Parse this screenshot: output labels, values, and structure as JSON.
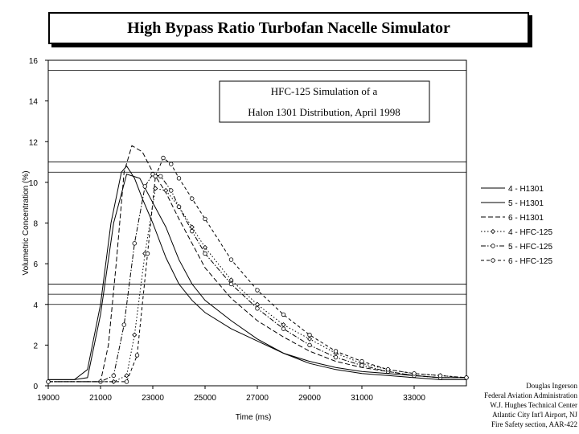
{
  "chart_data": {
    "type": "line",
    "title": "High Bypass Ratio Turbofan Nacelle Simulator",
    "xlabel": "Time (ms)",
    "ylabel": "Volumetric Concentration (%)",
    "xlim": [
      19000,
      35000
    ],
    "ylim": [
      0,
      16
    ],
    "xticks": [
      19000,
      21000,
      23000,
      25000,
      27000,
      29000,
      31000,
      33000
    ],
    "yticks": [
      0,
      2,
      4,
      6,
      8,
      10,
      12,
      14,
      16
    ],
    "grid": "horizontal reference lines",
    "hlines": [
      4.0,
      4.5,
      5.0,
      10.5,
      11.0,
      15.5
    ],
    "legend_position": "right",
    "annotation": [
      "HFC-125 Simulation of a",
      "Halon 1301 Distribution, April 1998"
    ],
    "series": [
      {
        "name": "4 - H1301",
        "style": "solid",
        "x": [
          19000,
          20000,
          20500,
          21000,
          21500,
          22000,
          22500,
          23000,
          23500,
          24000,
          24500,
          25000,
          26000,
          27000,
          28000,
          29000,
          30000,
          31000,
          32000,
          33000,
          34000,
          35000
        ],
        "y": [
          0.3,
          0.3,
          0.4,
          3.5,
          8.0,
          10.4,
          10.2,
          9.0,
          7.8,
          6.2,
          5.0,
          4.2,
          3.2,
          2.3,
          1.6,
          1.2,
          0.9,
          0.7,
          0.6,
          0.5,
          0.4,
          0.4
        ]
      },
      {
        "name": "5 - H1301",
        "style": "solid",
        "x": [
          19000,
          20000,
          20500,
          21000,
          21400,
          21800,
          22000,
          22300,
          22600,
          23000,
          23500,
          24000,
          24500,
          25000,
          26000,
          27000,
          28000,
          29000,
          30000,
          31000,
          32000,
          33000,
          34000,
          35000
        ],
        "y": [
          0.3,
          0.3,
          0.8,
          4.0,
          8.0,
          10.5,
          10.8,
          10.2,
          9.2,
          8.0,
          6.3,
          5.0,
          4.2,
          3.6,
          2.8,
          2.2,
          1.6,
          1.1,
          0.8,
          0.6,
          0.5,
          0.4,
          0.3,
          0.3
        ]
      },
      {
        "name": "6 - H1301",
        "style": "dashed",
        "x": [
          19000,
          21000,
          21300,
          21600,
          21900,
          22200,
          22600,
          23000,
          23500,
          24000,
          24500,
          25000,
          26000,
          27000,
          28000,
          29000,
          30000,
          31000,
          32000,
          33000,
          34000,
          35000
        ],
        "y": [
          0.2,
          0.2,
          2.0,
          6.0,
          10.5,
          11.8,
          11.5,
          10.5,
          9.5,
          8.2,
          7.0,
          5.8,
          4.3,
          3.2,
          2.4,
          1.7,
          1.2,
          0.9,
          0.7,
          0.5,
          0.4,
          0.4
        ]
      },
      {
        "name": "4 - HFC-125",
        "style": "dotted",
        "x": [
          19000,
          21500,
          22000,
          22300,
          22700,
          23100,
          23500,
          24000,
          24500,
          25000,
          26000,
          27000,
          28000,
          29000,
          30000,
          31000,
          32000,
          33000,
          34000,
          35000
        ],
        "y": [
          0.2,
          0.2,
          0.5,
          2.5,
          6.5,
          9.7,
          9.6,
          8.8,
          7.8,
          6.8,
          5.2,
          4.0,
          3.0,
          2.3,
          1.6,
          1.1,
          0.8,
          0.6,
          0.5,
          0.4
        ]
      },
      {
        "name": "5 - HFC-125",
        "style": "dash-dot",
        "x": [
          19000,
          21000,
          21500,
          21900,
          22300,
          22700,
          23000,
          23300,
          23700,
          24000,
          24500,
          25000,
          26000,
          27000,
          28000,
          29000,
          30000,
          31000,
          32000,
          33000,
          34000,
          35000
        ],
        "y": [
          0.2,
          0.2,
          0.5,
          3.0,
          7.0,
          9.8,
          10.4,
          10.3,
          9.6,
          8.8,
          7.6,
          6.5,
          5.0,
          3.8,
          2.8,
          2.0,
          1.4,
          1.0,
          0.7,
          0.5,
          0.4,
          0.4
        ]
      },
      {
        "name": "6 - HFC-125",
        "style": "dash",
        "x": [
          19000,
          22000,
          22400,
          22800,
          23100,
          23400,
          23700,
          24000,
          24500,
          25000,
          26000,
          27000,
          28000,
          29000,
          30000,
          31000,
          32000,
          33000,
          34000,
          35000
        ],
        "y": [
          0.2,
          0.2,
          1.5,
          6.5,
          10.3,
          11.2,
          10.9,
          10.2,
          9.2,
          8.2,
          6.2,
          4.7,
          3.5,
          2.5,
          1.7,
          1.2,
          0.8,
          0.6,
          0.5,
          0.4
        ]
      }
    ]
  },
  "credits": [
    "Douglas Ingerson",
    "Federal Aviation Administration",
    "W.J. Hughes Technical Center",
    "Atlantic City Int'l Airport, NJ",
    "Fire Safety section, AAR-422"
  ]
}
